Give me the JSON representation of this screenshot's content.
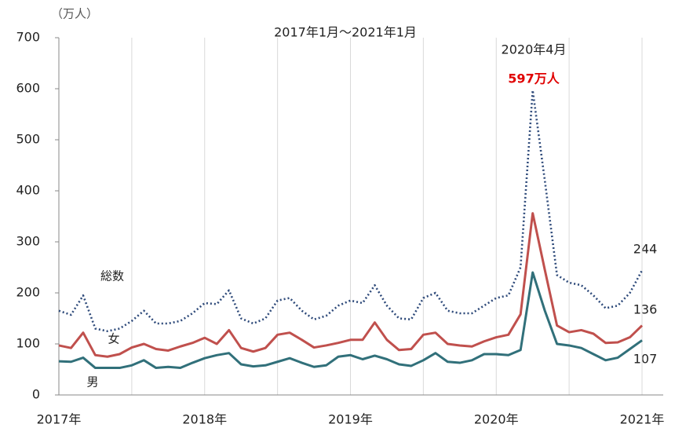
{
  "chart_data": {
    "type": "line",
    "title": "2017年1月～2021年1月",
    "y_unit": "（万人）",
    "annotations": [
      "2020年4月",
      "597万人"
    ],
    "categories": [
      "2017年",
      null,
      null,
      null,
      null,
      null,
      null,
      null,
      null,
      null,
      null,
      null,
      "2018年",
      null,
      null,
      null,
      null,
      null,
      null,
      null,
      null,
      null,
      null,
      null,
      "2019年",
      null,
      null,
      null,
      null,
      null,
      null,
      null,
      null,
      null,
      null,
      null,
      "2020年",
      null,
      null,
      null,
      null,
      null,
      null,
      null,
      null,
      null,
      null,
      null,
      "2021年"
    ],
    "series": [
      {
        "name": "総数",
        "color": "#2e4a7a",
        "style": "dotted",
        "values": [
          165,
          157,
          195,
          130,
          125,
          130,
          145,
          165,
          140,
          140,
          145,
          160,
          180,
          178,
          205,
          150,
          140,
          150,
          185,
          190,
          165,
          148,
          155,
          175,
          185,
          180,
          215,
          175,
          150,
          148,
          190,
          200,
          165,
          160,
          160,
          175,
          190,
          195,
          250,
          597,
          420,
          235,
          220,
          215,
          195,
          170,
          175,
          200,
          244
        ]
      },
      {
        "name": "女",
        "color": "#c0504d",
        "style": "solid",
        "values": [
          97,
          92,
          122,
          78,
          75,
          80,
          93,
          100,
          90,
          87,
          95,
          102,
          112,
          100,
          127,
          92,
          85,
          92,
          118,
          122,
          108,
          93,
          97,
          102,
          108,
          108,
          142,
          108,
          88,
          90,
          118,
          122,
          100,
          97,
          95,
          105,
          113,
          118,
          158,
          356,
          245,
          136,
          123,
          127,
          120,
          102,
          103,
          113,
          136
        ]
      },
      {
        "name": "男",
        "color": "#31707a",
        "style": "solid",
        "values": [
          66,
          65,
          73,
          53,
          53,
          53,
          58,
          68,
          53,
          55,
          53,
          63,
          72,
          78,
          82,
          60,
          56,
          58,
          65,
          72,
          63,
          55,
          58,
          75,
          78,
          70,
          77,
          70,
          60,
          57,
          68,
          82,
          65,
          63,
          68,
          80,
          80,
          78,
          88,
          240,
          165,
          100,
          97,
          92,
          80,
          68,
          73,
          90,
          107
        ]
      }
    ],
    "ylim": [
      0,
      700
    ],
    "yticks": [
      0,
      100,
      200,
      300,
      400,
      500,
      600,
      700
    ],
    "grid": "x"
  }
}
